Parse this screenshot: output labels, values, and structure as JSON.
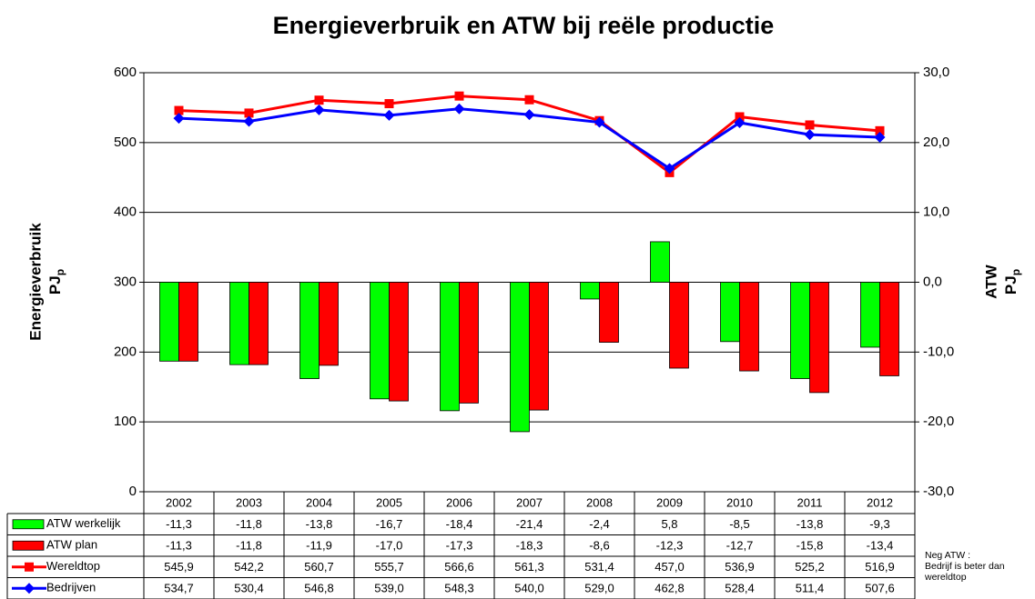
{
  "chart_data": {
    "type": "combo",
    "title": "Energieverbruik en ATW bij reële productie",
    "ylabel": "Energieverbruik",
    "ylabel_unit": {
      "text": "PJ",
      "sub": "p"
    },
    "y2label": "ATW",
    "y2label_unit": {
      "text": "PJ",
      "sub": "p"
    },
    "categories": [
      "2002",
      "2003",
      "2004",
      "2005",
      "2006",
      "2007",
      "2008",
      "2009",
      "2010",
      "2011",
      "2012"
    ],
    "ylim": [
      0,
      600
    ],
    "yticks": [
      0,
      100,
      200,
      300,
      400,
      500,
      600
    ],
    "y2lim": [
      -30,
      30
    ],
    "y2ticks": [
      {
        "value": -30,
        "label": "-30,0"
      },
      {
        "value": -20,
        "label": "-20,0"
      },
      {
        "value": -10,
        "label": "-10,0"
      },
      {
        "value": 0,
        "label": "0,0"
      },
      {
        "value": 10,
        "label": "10,0"
      },
      {
        "value": 20,
        "label": "20,0"
      },
      {
        "value": 30,
        "label": "30,0"
      }
    ],
    "grid": true,
    "series": [
      {
        "name": "ATW werkelijk",
        "type": "bar",
        "axis": "y2",
        "color": "#00ff00",
        "values": [
          -11.3,
          -11.8,
          -13.8,
          -16.7,
          -18.4,
          -21.4,
          -2.4,
          5.8,
          -8.5,
          -13.8,
          -9.3
        ],
        "value_labels": [
          "-11,3",
          "-11,8",
          "-13,8",
          "-16,7",
          "-18,4",
          "-21,4",
          "-2,4",
          "5,8",
          "-8,5",
          "-13,8",
          "-9,3"
        ]
      },
      {
        "name": "ATW plan",
        "type": "bar",
        "axis": "y2",
        "color": "#ff0000",
        "values": [
          -11.3,
          -11.8,
          -11.9,
          -17.0,
          -17.3,
          -18.3,
          -8.6,
          -12.3,
          -12.7,
          -15.8,
          -13.4
        ],
        "value_labels": [
          "-11,3",
          "-11,8",
          "-11,9",
          "-17,0",
          "-17,3",
          "-18,3",
          "-8,6",
          "-12,3",
          "-12,7",
          "-15,8",
          "-13,4"
        ]
      },
      {
        "name": "Wereldtop",
        "type": "line",
        "marker": "square",
        "color": "#ff0000",
        "values": [
          545.9,
          542.2,
          560.7,
          555.7,
          566.6,
          561.3,
          531.4,
          457.0,
          536.9,
          525.2,
          516.9
        ],
        "value_labels": [
          "545,9",
          "542,2",
          "560,7",
          "555,7",
          "566,6",
          "561,3",
          "531,4",
          "457,0",
          "536,9",
          "525,2",
          "516,9"
        ]
      },
      {
        "name": "Bedrijven",
        "type": "line",
        "marker": "diamond",
        "color": "#0000ff",
        "values": [
          534.7,
          530.4,
          546.8,
          539.0,
          548.3,
          540.0,
          529.0,
          462.8,
          528.4,
          511.4,
          507.6
        ],
        "value_labels": [
          "534,7",
          "530,4",
          "546,8",
          "539,0",
          "548,3",
          "540,0",
          "529,0",
          "462,8",
          "528,4",
          "511,4",
          "507,6"
        ]
      }
    ],
    "annotation": [
      "Neg ATW :",
      "Bedrijf is beter dan",
      "wereldtop"
    ]
  }
}
